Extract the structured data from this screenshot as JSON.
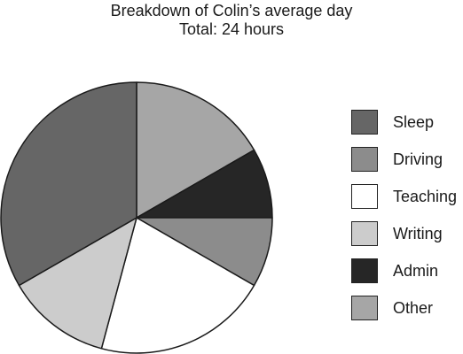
{
  "chart_data": {
    "type": "pie",
    "title": "Breakdown of Colin’s average day",
    "subtitle": "Total:  24 hours",
    "unit": "hours",
    "legend_position": "right",
    "slices": [
      {
        "label": "Sleep",
        "value": 8,
        "color": "#666666"
      },
      {
        "label": "Driving",
        "value": 2,
        "color": "#8c8c8c"
      },
      {
        "label": "Teaching",
        "value": 5,
        "color": "#ffffff"
      },
      {
        "label": "Writing",
        "value": 3,
        "color": "#cccccc"
      },
      {
        "label": "Admin",
        "value": 2,
        "color": "#262626"
      },
      {
        "label": "Other",
        "value": 4,
        "color": "#a6a6a6"
      }
    ]
  }
}
